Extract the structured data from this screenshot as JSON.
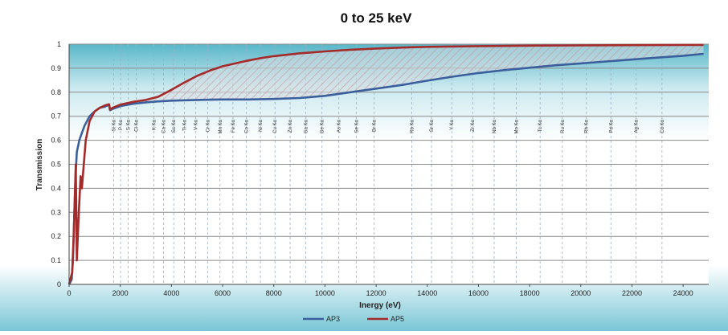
{
  "chart_data": {
    "type": "line",
    "title": "0 to 25 keV",
    "xlabel": "Inergy (eV)",
    "ylabel": "Transmission",
    "xlim": [
      0,
      25000
    ],
    "ylim": [
      0,
      1
    ],
    "x_ticks": [
      0,
      2000,
      4000,
      6000,
      8000,
      10000,
      12000,
      14000,
      16000,
      18000,
      20000,
      22000,
      24000
    ],
    "y_ticks": [
      0,
      0.1,
      0.2,
      0.3,
      0.4,
      0.5,
      0.6,
      0.7,
      0.8,
      0.9,
      1
    ],
    "grid": true,
    "legend_position": "bottom",
    "shaded_region_between_series": true,
    "emission_lines": [
      {
        "label": "Si Kα",
        "energy": 1740
      },
      {
        "label": "P Kα",
        "energy": 2013
      },
      {
        "label": "S Kα",
        "energy": 2307
      },
      {
        "label": "Cl Kα",
        "energy": 2622
      },
      {
        "label": "K Kα",
        "energy": 3313
      },
      {
        "label": "Ca Kα",
        "energy": 3691
      },
      {
        "label": "Sc Kα",
        "energy": 4090
      },
      {
        "label": "Ti Kα",
        "energy": 4510
      },
      {
        "label": "V Kα",
        "energy": 4952
      },
      {
        "label": "Cr Kα",
        "energy": 5414
      },
      {
        "label": "Mn Kα",
        "energy": 5898
      },
      {
        "label": "Fe Kα",
        "energy": 6403
      },
      {
        "label": "Co Kα",
        "energy": 6930
      },
      {
        "label": "Ni Kα",
        "energy": 7477
      },
      {
        "label": "Cu Kα",
        "energy": 8047
      },
      {
        "label": "Zn Kα",
        "energy": 8638
      },
      {
        "label": "Ga Kα",
        "energy": 9251
      },
      {
        "label": "Ge Kα",
        "energy": 9885
      },
      {
        "label": "As Kα",
        "energy": 10543
      },
      {
        "label": "Se Kα",
        "energy": 11222
      },
      {
        "label": "Br Kα",
        "energy": 11923
      },
      {
        "label": "Rb Kα",
        "energy": 13394
      },
      {
        "label": "Sr Kα",
        "energy": 14164
      },
      {
        "label": "Y Kα",
        "energy": 14957
      },
      {
        "label": "Zr Kα",
        "energy": 15774
      },
      {
        "label": "Nb Kα",
        "energy": 16614
      },
      {
        "label": "Mo Kα",
        "energy": 17478
      },
      {
        "label": "Tc Kα",
        "energy": 18410
      },
      {
        "label": "Ru Kα",
        "energy": 19279
      },
      {
        "label": "Rh Kα",
        "energy": 20216
      },
      {
        "label": "Pd Kα",
        "energy": 21177
      },
      {
        "label": "Ag Kα",
        "energy": 22163
      },
      {
        "label": "Cd Kα",
        "energy": 23174
      }
    ],
    "series": [
      {
        "name": "AP3",
        "color": "#3b5f9c",
        "points": [
          [
            0,
            0
          ],
          [
            100,
            0.02
          ],
          [
            150,
            0.1
          ],
          [
            200,
            0.28
          ],
          [
            250,
            0.45
          ],
          [
            300,
            0.55
          ],
          [
            400,
            0.6
          ],
          [
            500,
            0.63
          ],
          [
            600,
            0.66
          ],
          [
            800,
            0.7
          ],
          [
            1000,
            0.72
          ],
          [
            1200,
            0.735
          ],
          [
            1400,
            0.74
          ],
          [
            1500,
            0.745
          ],
          [
            1560,
            0.748
          ],
          [
            1600,
            0.725
          ],
          [
            1700,
            0.73
          ],
          [
            2000,
            0.742
          ],
          [
            2500,
            0.752
          ],
          [
            3000,
            0.758
          ],
          [
            3500,
            0.762
          ],
          [
            4000,
            0.765
          ],
          [
            5000,
            0.768
          ],
          [
            6000,
            0.77
          ],
          [
            7000,
            0.77
          ],
          [
            8000,
            0.772
          ],
          [
            9000,
            0.776
          ],
          [
            10000,
            0.785
          ],
          [
            11000,
            0.8
          ],
          [
            12000,
            0.815
          ],
          [
            13000,
            0.83
          ],
          [
            14000,
            0.848
          ],
          [
            15000,
            0.865
          ],
          [
            16000,
            0.88
          ],
          [
            17000,
            0.892
          ],
          [
            18000,
            0.902
          ],
          [
            19000,
            0.912
          ],
          [
            20000,
            0.92
          ],
          [
            21000,
            0.928
          ],
          [
            22000,
            0.936
          ],
          [
            23000,
            0.944
          ],
          [
            24000,
            0.952
          ],
          [
            24800,
            0.96
          ]
        ]
      },
      {
        "name": "AP5",
        "color": "#a52a2a",
        "points": [
          [
            0,
            0
          ],
          [
            120,
            0.05
          ],
          [
            180,
            0.2
          ],
          [
            220,
            0.35
          ],
          [
            260,
            0.5
          ],
          [
            300,
            0.1
          ],
          [
            380,
            0.3
          ],
          [
            450,
            0.45
          ],
          [
            500,
            0.4
          ],
          [
            560,
            0.48
          ],
          [
            650,
            0.6
          ],
          [
            800,
            0.68
          ],
          [
            1000,
            0.72
          ],
          [
            1200,
            0.735
          ],
          [
            1400,
            0.745
          ],
          [
            1500,
            0.748
          ],
          [
            1560,
            0.75
          ],
          [
            1600,
            0.728
          ],
          [
            1700,
            0.735
          ],
          [
            2000,
            0.748
          ],
          [
            2500,
            0.76
          ],
          [
            3000,
            0.768
          ],
          [
            3500,
            0.782
          ],
          [
            4000,
            0.81
          ],
          [
            4500,
            0.84
          ],
          [
            5000,
            0.868
          ],
          [
            5500,
            0.89
          ],
          [
            6000,
            0.908
          ],
          [
            6500,
            0.92
          ],
          [
            7000,
            0.932
          ],
          [
            7500,
            0.942
          ],
          [
            8000,
            0.95
          ],
          [
            8500,
            0.956
          ],
          [
            9000,
            0.962
          ],
          [
            10000,
            0.97
          ],
          [
            11000,
            0.977
          ],
          [
            12000,
            0.982
          ],
          [
            13000,
            0.986
          ],
          [
            14000,
            0.989
          ],
          [
            16000,
            0.992
          ],
          [
            18000,
            0.994
          ],
          [
            20000,
            0.995
          ],
          [
            22000,
            0.996
          ],
          [
            24000,
            0.997
          ],
          [
            24800,
            0.997
          ]
        ]
      }
    ]
  }
}
